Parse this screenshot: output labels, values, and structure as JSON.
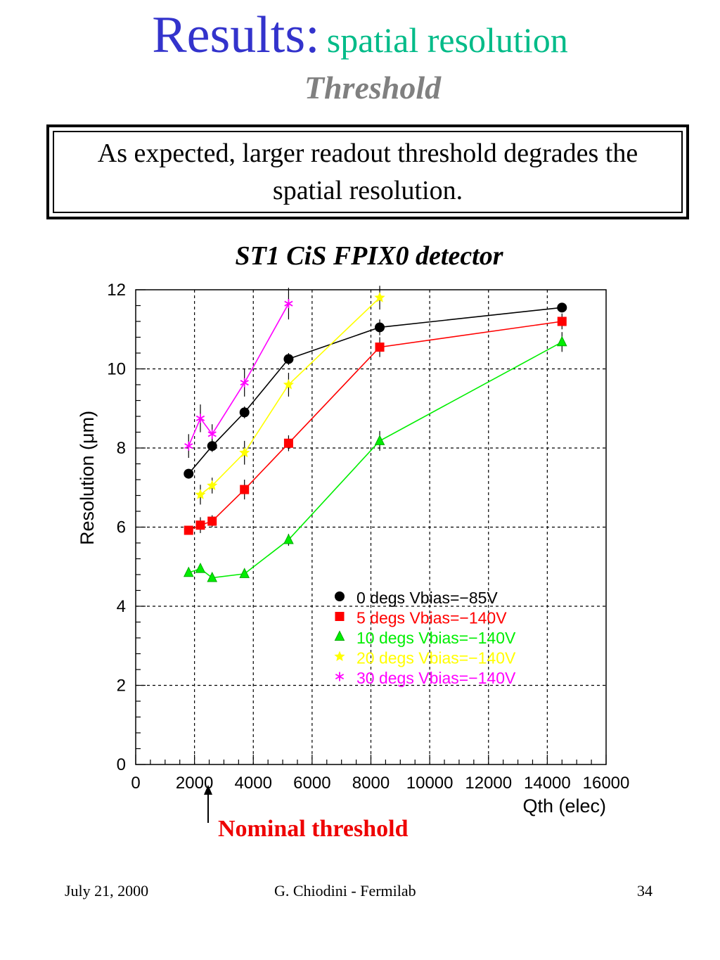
{
  "slide": {
    "title": "Results:",
    "title_sub": "spatial resolution",
    "subtitle": "Threshold",
    "note": "As expected, larger readout threshold degrades the spatial resolution.",
    "chart_caption": "ST1 CiS FPIX0 detector",
    "annotation": "Nominal threshold",
    "footer": {
      "date": "July 21, 2000",
      "author": "G. Chiodini - Fermilab",
      "page": "34"
    }
  },
  "colors": {
    "title": "#3333cc",
    "title_sub": "#00bb88",
    "subtitle": "#808080",
    "annotation": "#ee0000"
  },
  "chart_data": {
    "type": "scatter",
    "xlabel": "Qth (elec)",
    "ylabel": "Resolution (μm)",
    "xlim": [
      0,
      16000
    ],
    "ylim": [
      0,
      12
    ],
    "xticks": [
      0,
      2000,
      4000,
      6000,
      8000,
      10000,
      12000,
      14000,
      16000
    ],
    "yticks": [
      0,
      2,
      4,
      6,
      8,
      10,
      12
    ],
    "grid": true,
    "legend_position": "lower-right",
    "series": [
      {
        "name": "0 degs Vbias=−85V",
        "color": "#000000",
        "marker": "circle",
        "x": [
          1800,
          2600,
          3700,
          5200,
          8300,
          14500
        ],
        "y": [
          7.35,
          8.05,
          8.9,
          10.25,
          11.05,
          11.55
        ],
        "err": [
          0.12,
          0.15,
          0.15,
          0.15,
          0.2,
          0.12
        ]
      },
      {
        "name": "5 degs Vbias=−140V",
        "color": "#ff0000",
        "marker": "square",
        "x": [
          1800,
          2200,
          2600,
          3700,
          5200,
          8300,
          14500
        ],
        "y": [
          5.92,
          6.05,
          6.15,
          6.95,
          8.12,
          10.55,
          11.2
        ],
        "err": [
          0.1,
          0.2,
          0.15,
          0.25,
          0.2,
          0.25,
          0.2
        ]
      },
      {
        "name": "10 degs Vbias=−140V",
        "color": "#00ee00",
        "marker": "triangle",
        "x": [
          1800,
          2200,
          2600,
          3700,
          5200,
          8300,
          14500
        ],
        "y": [
          4.85,
          4.95,
          4.72,
          4.82,
          5.68,
          8.18,
          10.68
        ],
        "err": [
          0.1,
          0.1,
          0.1,
          0.1,
          0.15,
          0.25,
          0.25
        ]
      },
      {
        "name": "20 degs Vbias=−140V",
        "color": "#ffff00",
        "marker": "star",
        "x": [
          2200,
          2600,
          3700,
          5200,
          8300
        ],
        "y": [
          6.82,
          7.05,
          7.88,
          9.6,
          11.8
        ],
        "err": [
          0.25,
          0.2,
          0.3,
          0.3,
          0.3
        ]
      },
      {
        "name": "30 degs Vbias=−140V",
        "color": "#ff00ff",
        "marker": "asterisk",
        "x": [
          1800,
          2200,
          2600,
          3700,
          5200
        ],
        "y": [
          8.05,
          8.75,
          8.35,
          9.65,
          11.65
        ],
        "err": [
          0.3,
          0.35,
          0.25,
          0.35,
          0.4
        ]
      }
    ]
  }
}
